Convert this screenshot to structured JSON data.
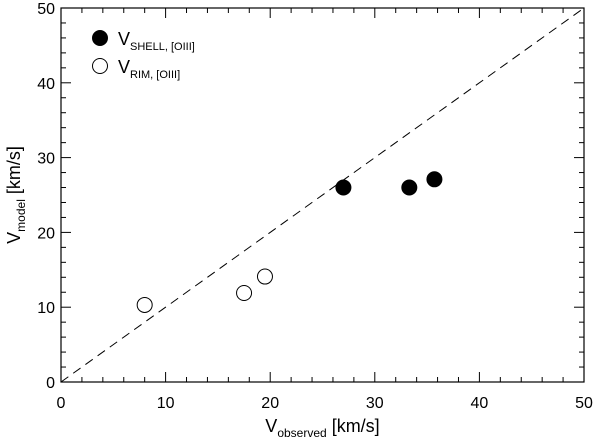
{
  "chart_data": {
    "type": "scatter",
    "xlabel": {
      "main": "V",
      "sub": "observed",
      "unit": " [km/s]"
    },
    "ylabel": {
      "main": "V",
      "sub": "model",
      "unit": " [km/s]"
    },
    "xlim": [
      0,
      50
    ],
    "ylim": [
      0,
      50
    ],
    "xticks": [
      0,
      10,
      20,
      30,
      40,
      50
    ],
    "yticks": [
      0,
      10,
      20,
      30,
      40,
      50
    ],
    "grid": false,
    "legend_position": "top-left",
    "reference_line": {
      "style": "dashed",
      "points": [
        [
          0,
          0
        ],
        [
          50,
          50
        ]
      ]
    },
    "series": [
      {
        "name": {
          "main": "V",
          "sub": "SHELL, [OIII]"
        },
        "marker": "filled-circle",
        "color": "#000000",
        "points": [
          [
            27.0,
            26.0
          ],
          [
            33.3,
            26.0
          ],
          [
            35.7,
            27.1
          ]
        ]
      },
      {
        "name": {
          "main": "V",
          "sub": "RIM, [OIII]"
        },
        "marker": "open-circle",
        "color": "#000000",
        "points": [
          [
            8.0,
            10.3
          ],
          [
            17.5,
            11.9
          ],
          [
            19.5,
            14.1
          ]
        ]
      }
    ]
  }
}
